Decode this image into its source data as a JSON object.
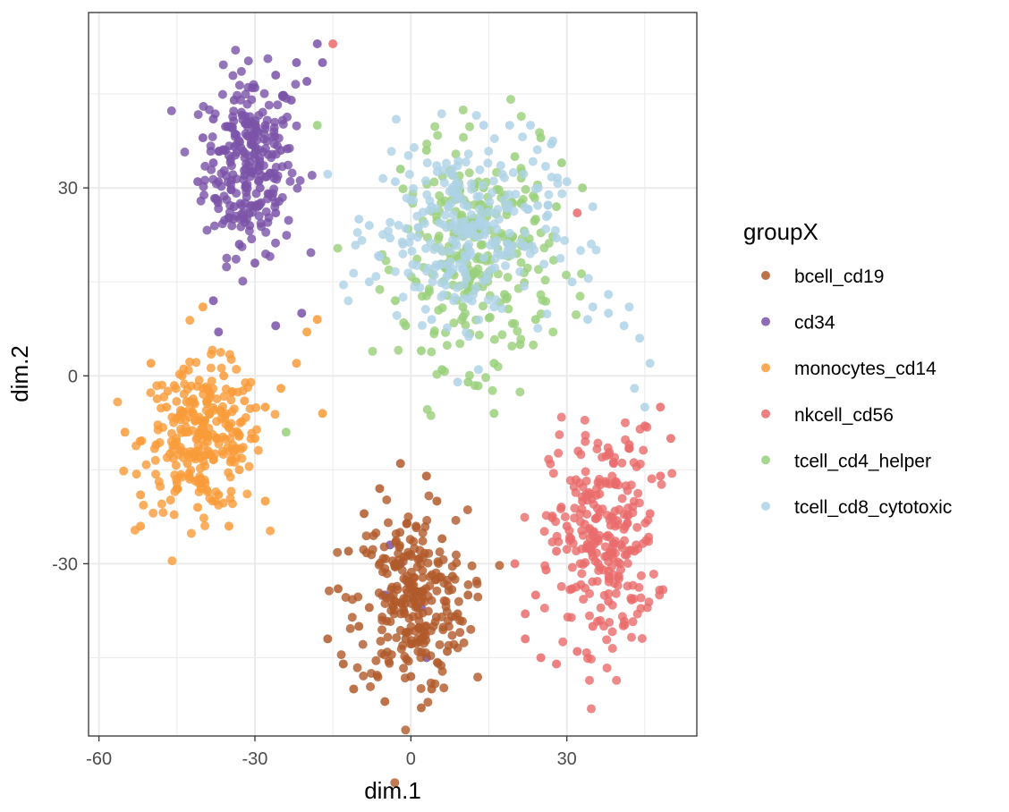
{
  "chart_data": {
    "type": "scatter",
    "xlabel": "dim.1",
    "ylabel": "dim.2",
    "xlim": [
      -62,
      55
    ],
    "ylim": [
      -57.5,
      58
    ],
    "x_ticks": [
      -60,
      -30,
      0,
      30
    ],
    "x_tick_labels": [
      "-60",
      "-30",
      "0",
      "30"
    ],
    "y_ticks": [
      -30,
      0,
      30
    ],
    "y_tick_labels": [
      "-30",
      "0",
      "30"
    ],
    "grid": true,
    "legend": {
      "title": "groupX",
      "position": "right",
      "entries": [
        "bcell_cd19",
        "cd34",
        "monocytes_cd14",
        "nkcell_cd56",
        "tcell_cd4_helper",
        "tcell_cd8_cytotoxic"
      ]
    },
    "series": [
      {
        "name": "bcell_cd19",
        "color": "#b05a2a",
        "cluster_center": [
          0.0,
          -36.0
        ],
        "cluster_spread": [
          7.5,
          10.0
        ],
        "points": [
          [
            -2,
            -14
          ],
          [
            3,
            -16
          ],
          [
            -6,
            -18
          ],
          [
            5,
            -20
          ],
          [
            -9,
            -22
          ],
          [
            1,
            -24
          ],
          [
            6,
            -26
          ],
          [
            -12,
            -28
          ],
          [
            -3,
            -30
          ],
          [
            8,
            -32
          ],
          [
            -14,
            -34
          ],
          [
            2,
            -36
          ],
          [
            9,
            -38
          ],
          [
            -10,
            -40
          ],
          [
            -1,
            -42
          ],
          [
            7,
            -44
          ],
          [
            -13,
            -46
          ],
          [
            0,
            -48
          ],
          [
            4,
            -50
          ],
          [
            -5,
            -52
          ],
          [
            2,
            -53
          ],
          [
            -8,
            -37
          ],
          [
            11,
            -35
          ],
          [
            -16,
            -42
          ],
          [
            -11,
            -50
          ]
        ]
      },
      {
        "name": "cd34",
        "color": "#7a52a8",
        "cluster_center": [
          -31.0,
          34.0
        ],
        "cluster_spread": [
          6.0,
          10.0
        ],
        "points": [
          [
            -18,
            53
          ],
          [
            -22,
            50
          ],
          [
            -26,
            48
          ],
          [
            -30,
            46
          ],
          [
            -34,
            44
          ],
          [
            -38,
            41
          ],
          [
            -40,
            38
          ],
          [
            -36,
            36
          ],
          [
            -28,
            40
          ],
          [
            -23,
            44
          ],
          [
            -20,
            47
          ],
          [
            -32,
            32
          ],
          [
            -37,
            31
          ],
          [
            -29,
            30
          ],
          [
            -34,
            27
          ],
          [
            -31,
            24
          ],
          [
            -33,
            21
          ],
          [
            -30,
            18
          ],
          [
            -26,
            26
          ],
          [
            -38,
            34
          ],
          [
            -25,
            36
          ],
          [
            -41,
            31
          ],
          [
            -17,
            50
          ],
          [
            -4,
            -27
          ],
          [
            -5,
            -35
          ],
          [
            2,
            -37
          ],
          [
            3,
            -45
          ],
          [
            -2,
            -30
          ],
          [
            -38,
            12
          ],
          [
            -37,
            7
          ],
          [
            -21,
            10
          ],
          [
            -26,
            8
          ]
        ]
      },
      {
        "name": "monocytes_cd14",
        "color": "#f99b38",
        "cluster_center": [
          -40.0,
          -10.0
        ],
        "cluster_spread": [
          8.0,
          8.0
        ],
        "points": [
          [
            -52,
            -19
          ],
          [
            -49,
            -11
          ],
          [
            -47,
            -5
          ],
          [
            -44,
            0
          ],
          [
            -40,
            -2
          ],
          [
            -36,
            0
          ],
          [
            -32,
            -4
          ],
          [
            -35,
            -8
          ],
          [
            -39,
            -12
          ],
          [
            -43,
            -14
          ],
          [
            -45,
            -18
          ],
          [
            -41,
            -21
          ],
          [
            -37,
            -19
          ],
          [
            -33,
            -15
          ],
          [
            -30,
            -10
          ],
          [
            -28,
            -5
          ],
          [
            -25,
            -2
          ],
          [
            -22,
            2
          ],
          [
            -20,
            7
          ],
          [
            -18,
            9
          ],
          [
            -17,
            -6
          ],
          [
            -52,
            -24
          ],
          [
            -55,
            -9
          ],
          [
            -50,
            2
          ],
          [
            -40,
            11
          ],
          [
            -28,
            -20
          ],
          [
            -35,
            -24
          ]
        ]
      },
      {
        "name": "nkcell_cd56",
        "color": "#ea6b6b",
        "cluster_center": [
          37.0,
          -26.0
        ],
        "cluster_spread": [
          7.0,
          12.0
        ],
        "points": [
          [
            48,
            -5
          ],
          [
            45,
            -8
          ],
          [
            42,
            -11
          ],
          [
            39,
            -14
          ],
          [
            36,
            -17
          ],
          [
            33,
            -20
          ],
          [
            30,
            -24
          ],
          [
            28,
            -28
          ],
          [
            26,
            -31
          ],
          [
            24,
            -35
          ],
          [
            22,
            -38
          ],
          [
            22,
            -42
          ],
          [
            25,
            -45
          ],
          [
            28,
            -46
          ],
          [
            32,
            -44
          ],
          [
            35,
            -40
          ],
          [
            38,
            -36
          ],
          [
            40,
            -32
          ],
          [
            43,
            -28
          ],
          [
            46,
            -22
          ],
          [
            48,
            -16
          ],
          [
            50,
            -10
          ],
          [
            36,
            -26
          ],
          [
            31,
            -34
          ],
          [
            20,
            -30
          ],
          [
            -15,
            53
          ],
          [
            32,
            26
          ]
        ]
      },
      {
        "name": "tcell_cd4_helper",
        "color": "#98d07a",
        "cluster_center": [
          13.0,
          19.0
        ],
        "cluster_spread": [
          10.0,
          12.0
        ],
        "points": [
          [
            -2,
            33
          ],
          [
            3,
            36
          ],
          [
            8,
            32
          ],
          [
            14,
            30
          ],
          [
            20,
            35
          ],
          [
            25,
            38
          ],
          [
            29,
            34
          ],
          [
            33,
            30
          ],
          [
            28,
            27
          ],
          [
            24,
            25
          ],
          [
            19,
            22
          ],
          [
            13,
            19
          ],
          [
            7,
            17
          ],
          [
            1,
            15
          ],
          [
            -3,
            12
          ],
          [
            -1,
            8
          ],
          [
            2,
            4
          ],
          [
            6,
            1
          ],
          [
            11,
            -1
          ],
          [
            16,
            2
          ],
          [
            21,
            5
          ],
          [
            24,
            9
          ],
          [
            18,
            13
          ],
          [
            10,
            11
          ],
          [
            16,
            -6
          ],
          [
            -18,
            40
          ],
          [
            -24,
            -9
          ]
        ]
      },
      {
        "name": "tcell_cd8_cytotoxic",
        "color": "#aed2e6",
        "cluster_center": [
          10.0,
          23.0
        ],
        "cluster_spread": [
          12.0,
          10.0
        ],
        "points": [
          [
            -8,
            24
          ],
          [
            -6,
            19
          ],
          [
            -8,
            15
          ],
          [
            -4,
            22
          ],
          [
            0,
            28
          ],
          [
            -3,
            31
          ],
          [
            4,
            27
          ],
          [
            8,
            24
          ],
          [
            14,
            40
          ],
          [
            19,
            40
          ],
          [
            23,
            40
          ],
          [
            27,
            37
          ],
          [
            30,
            31
          ],
          [
            35,
            27
          ],
          [
            28,
            22
          ],
          [
            31,
            15
          ],
          [
            35,
            11
          ],
          [
            38,
            10
          ],
          [
            41,
            8
          ],
          [
            44,
            6
          ],
          [
            46,
            2
          ],
          [
            43,
            -2
          ],
          [
            45,
            -5
          ],
          [
            42,
            11
          ],
          [
            38,
            13
          ],
          [
            34,
            9
          ],
          [
            9,
            -1
          ],
          [
            13,
            1
          ],
          [
            16,
            11
          ],
          [
            4,
            9
          ],
          [
            -10,
            25
          ]
        ]
      }
    ]
  }
}
